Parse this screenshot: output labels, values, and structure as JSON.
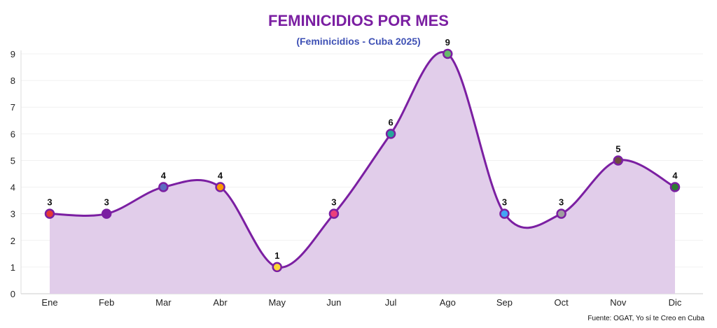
{
  "chart_data": {
    "type": "line",
    "title": "FEMINICIDIOS POR MES",
    "subtitle": "(Feminicidios - Cuba 2025)",
    "categories": [
      "Ene",
      "Feb",
      "Mar",
      "Abr",
      "May",
      "Jun",
      "Jul",
      "Ago",
      "Sep",
      "Oct",
      "Nov",
      "Dic"
    ],
    "series": [
      {
        "values": [
          3,
          3,
          4,
          4,
          1,
          3,
          6,
          9,
          3,
          3,
          5,
          4
        ]
      }
    ],
    "point_colors": [
      "#e53935",
      "#7b1fa2",
      "#5c6bc0",
      "#ff9800",
      "#fdd835",
      "#ec407a",
      "#26a69a",
      "#66bb6a",
      "#42a5f5",
      "#9e9e9e",
      "#6d4c41",
      "#2e7d32"
    ],
    "line_color": "#7b1fa2",
    "fill_color": "#e1cdea",
    "ylim": [
      0,
      9
    ],
    "yticks": [
      0,
      1,
      2,
      3,
      4,
      5,
      6,
      7,
      8,
      9
    ],
    "grid": true,
    "smooth": true,
    "data_labels": true,
    "source": "Fuente: OGAT, Yo sí te Creo en Cuba"
  }
}
